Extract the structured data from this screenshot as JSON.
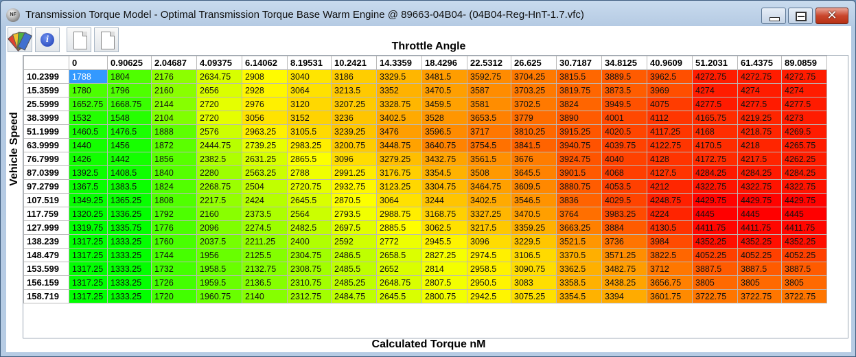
{
  "window": {
    "title": "Transmission Torque Model - Optimal Transmission Torque Base Warm Engine @ 89663-04B04- (04B04-Reg-HnT-1.7.vfc)",
    "app_icon_text": "NF",
    "close_glyph": "✕"
  },
  "toolbar": {
    "buttons": [
      {
        "name": "color-scheme",
        "icon": "palette-fan-icon"
      },
      {
        "name": "info",
        "icon": "info-icon",
        "glyph": "i"
      },
      {
        "name": "copy",
        "icon": "document-icon"
      },
      {
        "name": "paste",
        "icon": "document-icon"
      }
    ],
    "fan_colors": [
      "#e04030",
      "#f0c030",
      "#50b040",
      "#4070d0"
    ]
  },
  "table": {
    "x_axis_title": "Throttle Angle",
    "y_axis_title": "Vehicle Speed",
    "value_title": "Calculated Torque nM",
    "columns": [
      "0",
      "0.90625",
      "2.04687",
      "4.09375",
      "6.14062",
      "8.19531",
      "10.2421",
      "14.3359",
      "18.4296",
      "22.5312",
      "26.625",
      "30.7187",
      "34.8125",
      "40.9609",
      "51.2031",
      "61.4375",
      "89.0859"
    ],
    "rows": [
      {
        "speed": "10.2399",
        "values": [
          "1788",
          "1804",
          "2176",
          "2634.75",
          "2908",
          "3040",
          "3186",
          "3329.5",
          "3481.5",
          "3592.75",
          "3704.25",
          "3815.5",
          "3889.5",
          "3962.5",
          "4272.75",
          "4272.75",
          "4272.75"
        ]
      },
      {
        "speed": "15.3599",
        "values": [
          "1780",
          "1796",
          "2160",
          "2656",
          "2928",
          "3064",
          "3213.5",
          "3352",
          "3470.5",
          "3587",
          "3703.25",
          "3819.75",
          "3873.5",
          "3969",
          "4274",
          "4274",
          "4274"
        ]
      },
      {
        "speed": "25.5999",
        "values": [
          "1652.75",
          "1668.75",
          "2144",
          "2720",
          "2976",
          "3120",
          "3207.25",
          "3328.75",
          "3459.5",
          "3581",
          "3702.5",
          "3824",
          "3949.5",
          "4075",
          "4277.5",
          "4277.5",
          "4277.5"
        ]
      },
      {
        "speed": "38.3999",
        "values": [
          "1532",
          "1548",
          "2104",
          "2720",
          "3056",
          "3152",
          "3236",
          "3402.5",
          "3528",
          "3653.5",
          "3779",
          "3890",
          "4001",
          "4112",
          "4165.75",
          "4219.25",
          "4273"
        ]
      },
      {
        "speed": "51.1999",
        "values": [
          "1460.5",
          "1476.5",
          "1888",
          "2576",
          "2963.25",
          "3105.5",
          "3239.25",
          "3476",
          "3596.5",
          "3717",
          "3810.25",
          "3915.25",
          "4020.5",
          "4117.25",
          "4168",
          "4218.75",
          "4269.5"
        ]
      },
      {
        "speed": "63.9999",
        "values": [
          "1440",
          "1456",
          "1872",
          "2444.75",
          "2739.25",
          "2983.25",
          "3200.75",
          "3448.75",
          "3640.75",
          "3754.5",
          "3841.5",
          "3940.75",
          "4039.75",
          "4122.75",
          "4170.5",
          "4218",
          "4265.75"
        ]
      },
      {
        "speed": "76.7999",
        "values": [
          "1426",
          "1442",
          "1856",
          "2382.5",
          "2631.25",
          "2865.5",
          "3096",
          "3279.25",
          "3432.75",
          "3561.5",
          "3676",
          "3924.75",
          "4040",
          "4128",
          "4172.75",
          "4217.5",
          "4262.25"
        ]
      },
      {
        "speed": "87.0399",
        "values": [
          "1392.5",
          "1408.5",
          "1840",
          "2280",
          "2563.25",
          "2788",
          "2991.25",
          "3176.75",
          "3354.5",
          "3508",
          "3645.5",
          "3901.5",
          "4068",
          "4127.5",
          "4284.25",
          "4284.25",
          "4284.25"
        ]
      },
      {
        "speed": "97.2799",
        "values": [
          "1367.5",
          "1383.5",
          "1824",
          "2268.75",
          "2504",
          "2720.75",
          "2932.75",
          "3123.25",
          "3304.75",
          "3464.75",
          "3609.5",
          "3880.75",
          "4053.5",
          "4212",
          "4322.75",
          "4322.75",
          "4322.75"
        ]
      },
      {
        "speed": "107.519",
        "values": [
          "1349.25",
          "1365.25",
          "1808",
          "2217.5",
          "2424",
          "2645.5",
          "2870.5",
          "3064",
          "3244",
          "3402.5",
          "3546.5",
          "3836",
          "4029.5",
          "4248.75",
          "4429.75",
          "4429.75",
          "4429.75"
        ]
      },
      {
        "speed": "117.759",
        "values": [
          "1320.25",
          "1336.25",
          "1792",
          "2160",
          "2373.5",
          "2564",
          "2793.5",
          "2988.75",
          "3168.75",
          "3327.25",
          "3470.5",
          "3764",
          "3983.25",
          "4224",
          "4445",
          "4445",
          "4445"
        ]
      },
      {
        "speed": "127.999",
        "values": [
          "1319.75",
          "1335.75",
          "1776",
          "2096",
          "2274.5",
          "2482.5",
          "2697.5",
          "2885.5",
          "3062.5",
          "3217.5",
          "3359.25",
          "3663.25",
          "3884",
          "4130.5",
          "4411.75",
          "4411.75",
          "4411.75"
        ]
      },
      {
        "speed": "138.239",
        "values": [
          "1317.25",
          "1333.25",
          "1760",
          "2037.5",
          "2211.25",
          "2400",
          "2592",
          "2772",
          "2945.5",
          "3096",
          "3229.5",
          "3521.5",
          "3736",
          "3984",
          "4352.25",
          "4352.25",
          "4352.25"
        ]
      },
      {
        "speed": "148.479",
        "values": [
          "1317.25",
          "1333.25",
          "1744",
          "1956",
          "2125.5",
          "2304.75",
          "2486.5",
          "2658.5",
          "2827.25",
          "2974.5",
          "3106.5",
          "3370.5",
          "3571.25",
          "3822.5",
          "4052.25",
          "4052.25",
          "4052.25"
        ]
      },
      {
        "speed": "153.599",
        "values": [
          "1317.25",
          "1333.25",
          "1732",
          "1958.5",
          "2132.75",
          "2308.75",
          "2485.5",
          "2652",
          "2814",
          "2958.5",
          "3090.75",
          "3362.5",
          "3482.75",
          "3712",
          "3887.5",
          "3887.5",
          "3887.5"
        ]
      },
      {
        "speed": "156.159",
        "values": [
          "1317.25",
          "1333.25",
          "1726",
          "1959.5",
          "2136.5",
          "2310.75",
          "2485.25",
          "2648.75",
          "2807.5",
          "2950.5",
          "3083",
          "3358.5",
          "3438.25",
          "3656.75",
          "3805",
          "3805",
          "3805"
        ]
      },
      {
        "speed": "158.719",
        "values": [
          "1317.25",
          "1333.25",
          "1720",
          "1960.75",
          "2140",
          "2312.75",
          "2484.75",
          "2645.5",
          "2800.75",
          "2942.5",
          "3075.25",
          "3354.5",
          "3394",
          "3601.75",
          "3722.75",
          "3722.75",
          "3722.75"
        ]
      }
    ],
    "selected_cell": {
      "row": 0,
      "col": 0
    }
  },
  "colors": {
    "selected_cell": "#3399ff",
    "window_frame": "#b7cce4",
    "close_button": "#c9462c"
  }
}
